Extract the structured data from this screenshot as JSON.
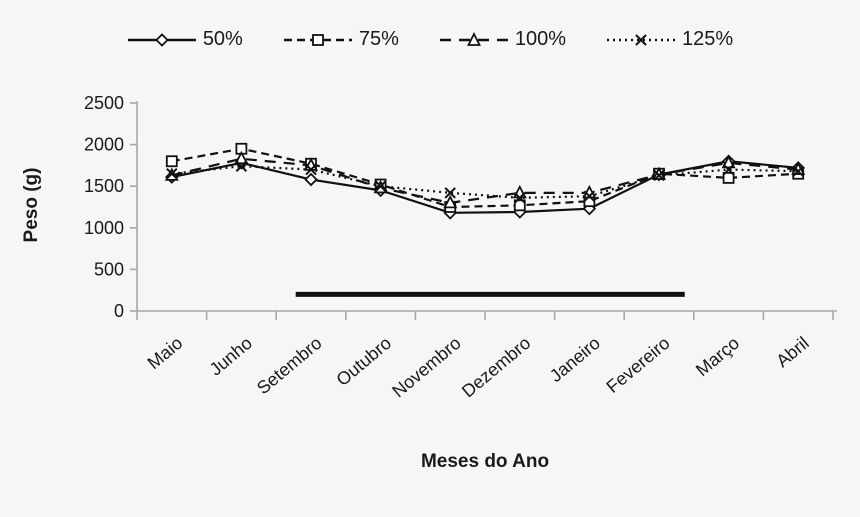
{
  "chart_data": {
    "type": "line",
    "title": "",
    "xlabel": "Meses do Ano",
    "ylabel": "Peso (g)",
    "ylim": [
      0,
      2500
    ],
    "yticks": [
      0,
      500,
      1000,
      1500,
      2000,
      2500
    ],
    "grid": false,
    "legend_position": "top",
    "categories": [
      "Maio",
      "Junho",
      "Setembro",
      "Outubro",
      "Novembro",
      "Dezembro",
      "Janeiro",
      "Fevereiro",
      "Março",
      "Abril"
    ],
    "series": [
      {
        "name": "50%",
        "marker": "diamond",
        "line_style": "solid",
        "values": [
          1610,
          1780,
          1580,
          1450,
          1180,
          1190,
          1230,
          1640,
          1800,
          1720
        ]
      },
      {
        "name": "75%",
        "marker": "square",
        "line_style": "dashed",
        "values": [
          1800,
          1950,
          1770,
          1520,
          1250,
          1270,
          1320,
          1650,
          1600,
          1650
        ]
      },
      {
        "name": "100%",
        "marker": "triangle",
        "line_style": "long-dash",
        "values": [
          1630,
          1830,
          1750,
          1480,
          1300,
          1420,
          1420,
          1640,
          1780,
          1700
        ]
      },
      {
        "name": "125%",
        "marker": "x",
        "line_style": "dotted",
        "values": [
          1650,
          1740,
          1700,
          1500,
          1420,
          1360,
          1380,
          1630,
          1700,
          1680
        ]
      }
    ],
    "annotation_bar": {
      "from_category": "Setembro",
      "to_category": "Fevereiro",
      "y_value": 200
    },
    "colors": {
      "line": "#111111",
      "axis": "#a8a8a8",
      "text": "#1a1a1a",
      "background": "#f7f6f4",
      "marker_fill": "#ffffff"
    }
  }
}
